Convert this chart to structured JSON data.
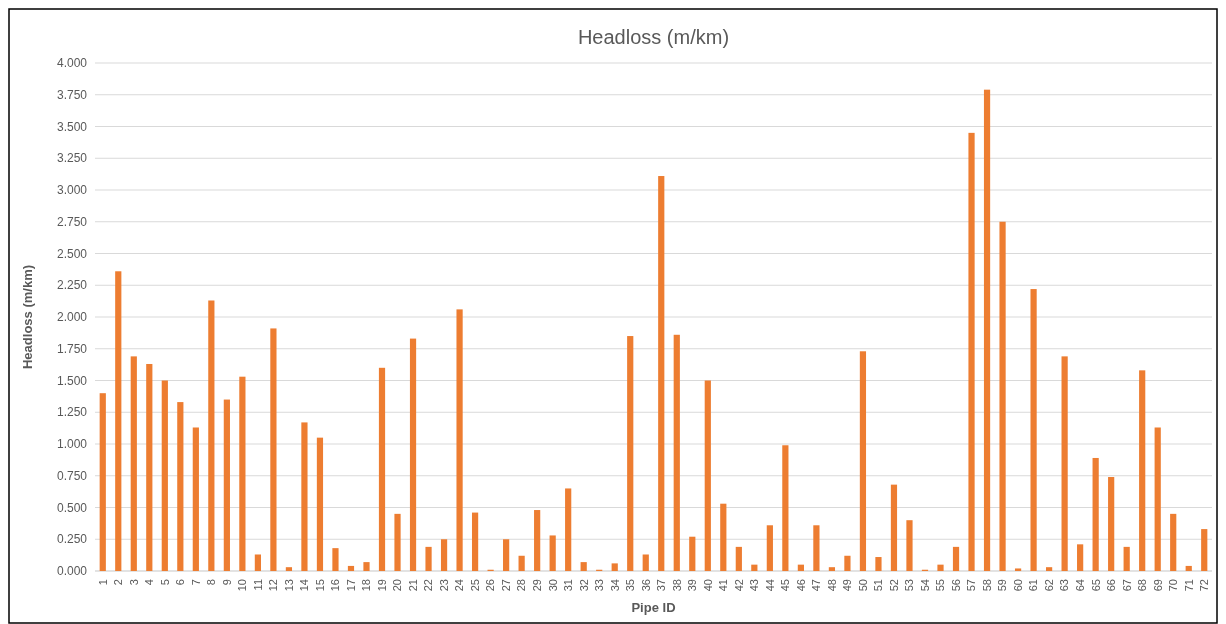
{
  "chart_data": {
    "type": "bar",
    "title": "Headloss (m/km)",
    "xlabel": "Pipe ID",
    "ylabel": "Headloss (m/km)",
    "categories": [
      "1",
      "2",
      "3",
      "4",
      "5",
      "6",
      "7",
      "8",
      "9",
      "10",
      "11",
      "12",
      "13",
      "14",
      "15",
      "16",
      "17",
      "18",
      "19",
      "20",
      "21",
      "22",
      "23",
      "24",
      "25",
      "26",
      "27",
      "28",
      "29",
      "30",
      "31",
      "32",
      "33",
      "34",
      "35",
      "36",
      "37",
      "38",
      "39",
      "40",
      "41",
      "42",
      "43",
      "44",
      "45",
      "46",
      "47",
      "48",
      "49",
      "50",
      "51",
      "52",
      "53",
      "54",
      "55",
      "56",
      "57",
      "58",
      "59",
      "60",
      "61",
      "62",
      "63",
      "64",
      "65",
      "66",
      "67",
      "68",
      "69",
      "70",
      "71",
      "72"
    ],
    "series": [
      {
        "color": "#ed7d31",
        "values": [
          1.4,
          2.36,
          1.69,
          1.63,
          1.5,
          1.33,
          1.13,
          2.13,
          1.35,
          1.53,
          0.13,
          1.91,
          0.03,
          1.17,
          1.05,
          0.18,
          0.04,
          0.07,
          1.6,
          0.45,
          1.83,
          0.19,
          0.25,
          2.06,
          0.46,
          0.01,
          0.25,
          0.12,
          0.48,
          0.28,
          0.65,
          0.07,
          0.01,
          0.06,
          1.85,
          0.13,
          3.11,
          1.86,
          0.27,
          1.5,
          0.53,
          0.19,
          0.05,
          0.36,
          0.99,
          0.05,
          0.36,
          0.03,
          0.12,
          1.73,
          0.11,
          0.68,
          0.4,
          0.01,
          0.05,
          0.19,
          3.45,
          3.79,
          2.75,
          0.02,
          2.22,
          0.03,
          1.69,
          0.21,
          0.89,
          0.74,
          0.19,
          1.58,
          1.13,
          0.45,
          0.04,
          0.33
        ]
      }
    ],
    "ylim": [
      0,
      4
    ],
    "yticks": [
      {
        "value": 0,
        "label": "0.000"
      },
      {
        "value": 0.25,
        "label": "0.250"
      },
      {
        "value": 0.5,
        "label": "0.500"
      },
      {
        "value": 0.75,
        "label": "0.750"
      },
      {
        "value": 1,
        "label": "1.000"
      },
      {
        "value": 1.25,
        "label": "1.250"
      },
      {
        "value": 1.5,
        "label": "1.500"
      },
      {
        "value": 1.75,
        "label": "1.750"
      },
      {
        "value": 2,
        "label": "2.000"
      },
      {
        "value": 2.25,
        "label": "2.250"
      },
      {
        "value": 2.5,
        "label": "2.500"
      },
      {
        "value": 2.75,
        "label": "2.750"
      },
      {
        "value": 3,
        "label": "3.000"
      },
      {
        "value": 3.25,
        "label": "3.250"
      },
      {
        "value": 3.5,
        "label": "3.500"
      },
      {
        "value": 3.75,
        "label": "3.750"
      },
      {
        "value": 4,
        "label": "4.000"
      }
    ],
    "grid": "y"
  }
}
